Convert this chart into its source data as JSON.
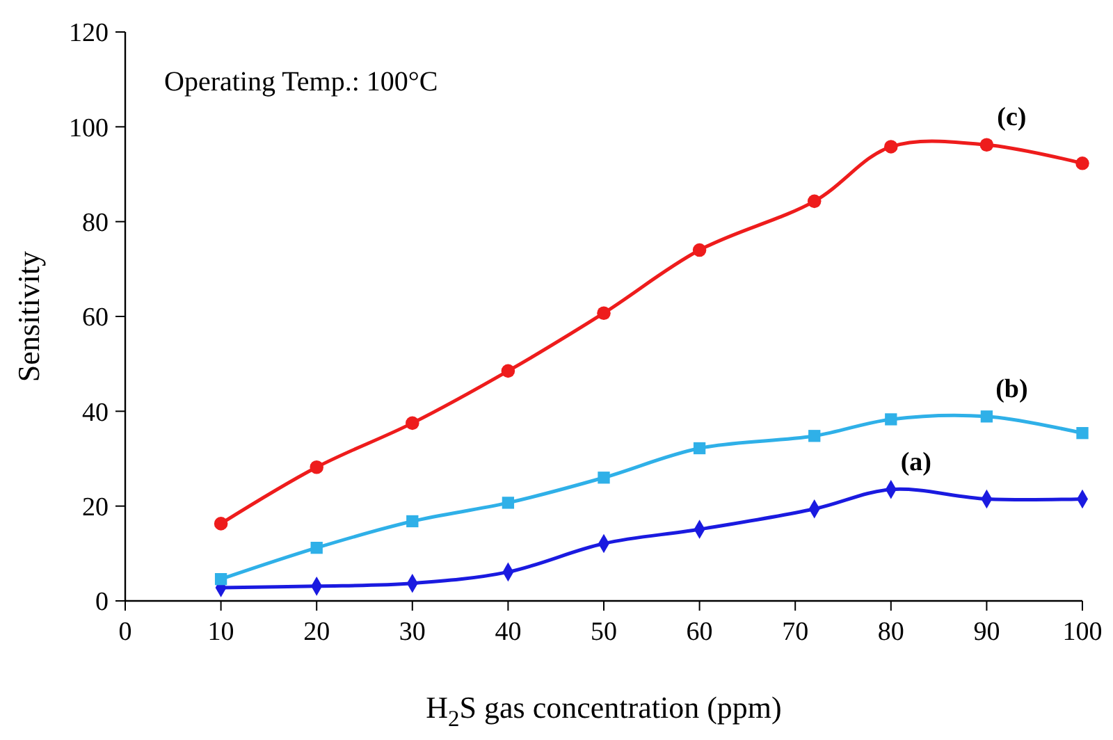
{
  "chart_data": {
    "type": "line",
    "xlabel": "H$_{2}$S gas concentration (ppm)",
    "ylabel": "Sensitivity",
    "xlim": [
      0,
      100
    ],
    "ylim": [
      0,
      120
    ],
    "xticks": [
      0,
      10,
      20,
      30,
      40,
      50,
      60,
      70,
      80,
      90,
      100
    ],
    "yticks": [
      0,
      20,
      40,
      60,
      80,
      100,
      120
    ],
    "grid": false,
    "line_style": "solid",
    "series": [
      {
        "name": "(a)",
        "x": [
          10,
          20,
          30,
          40,
          50,
          60,
          72,
          80,
          90,
          100
        ],
        "color": "#1a1ae0",
        "marker": "diamond",
        "values": [
          2.8,
          3.1,
          3.7,
          6.1,
          12.1,
          15.1,
          19.4,
          23.5,
          21.5,
          21.5
        ]
      },
      {
        "name": "(b)",
        "x": [
          10,
          20,
          30,
          40,
          50,
          60,
          72,
          80,
          90,
          100
        ],
        "color": "#2fb0e8",
        "marker": "square",
        "values": [
          4.6,
          11.2,
          16.8,
          20.7,
          26,
          32.2,
          34.8,
          38.3,
          38.9,
          35.4
        ]
      },
      {
        "name": "(c)",
        "x": [
          10,
          20,
          30,
          40,
          50,
          60,
          72,
          80,
          90,
          100
        ],
        "color": "#ee1c1c",
        "marker": "circle",
        "values": [
          16.3,
          28.2,
          37.5,
          48.5,
          60.7,
          74,
          84.3,
          95.8,
          96.2,
          92.3
        ]
      }
    ],
    "annotations": [
      "Operating Temp.: 100°C"
    ]
  }
}
